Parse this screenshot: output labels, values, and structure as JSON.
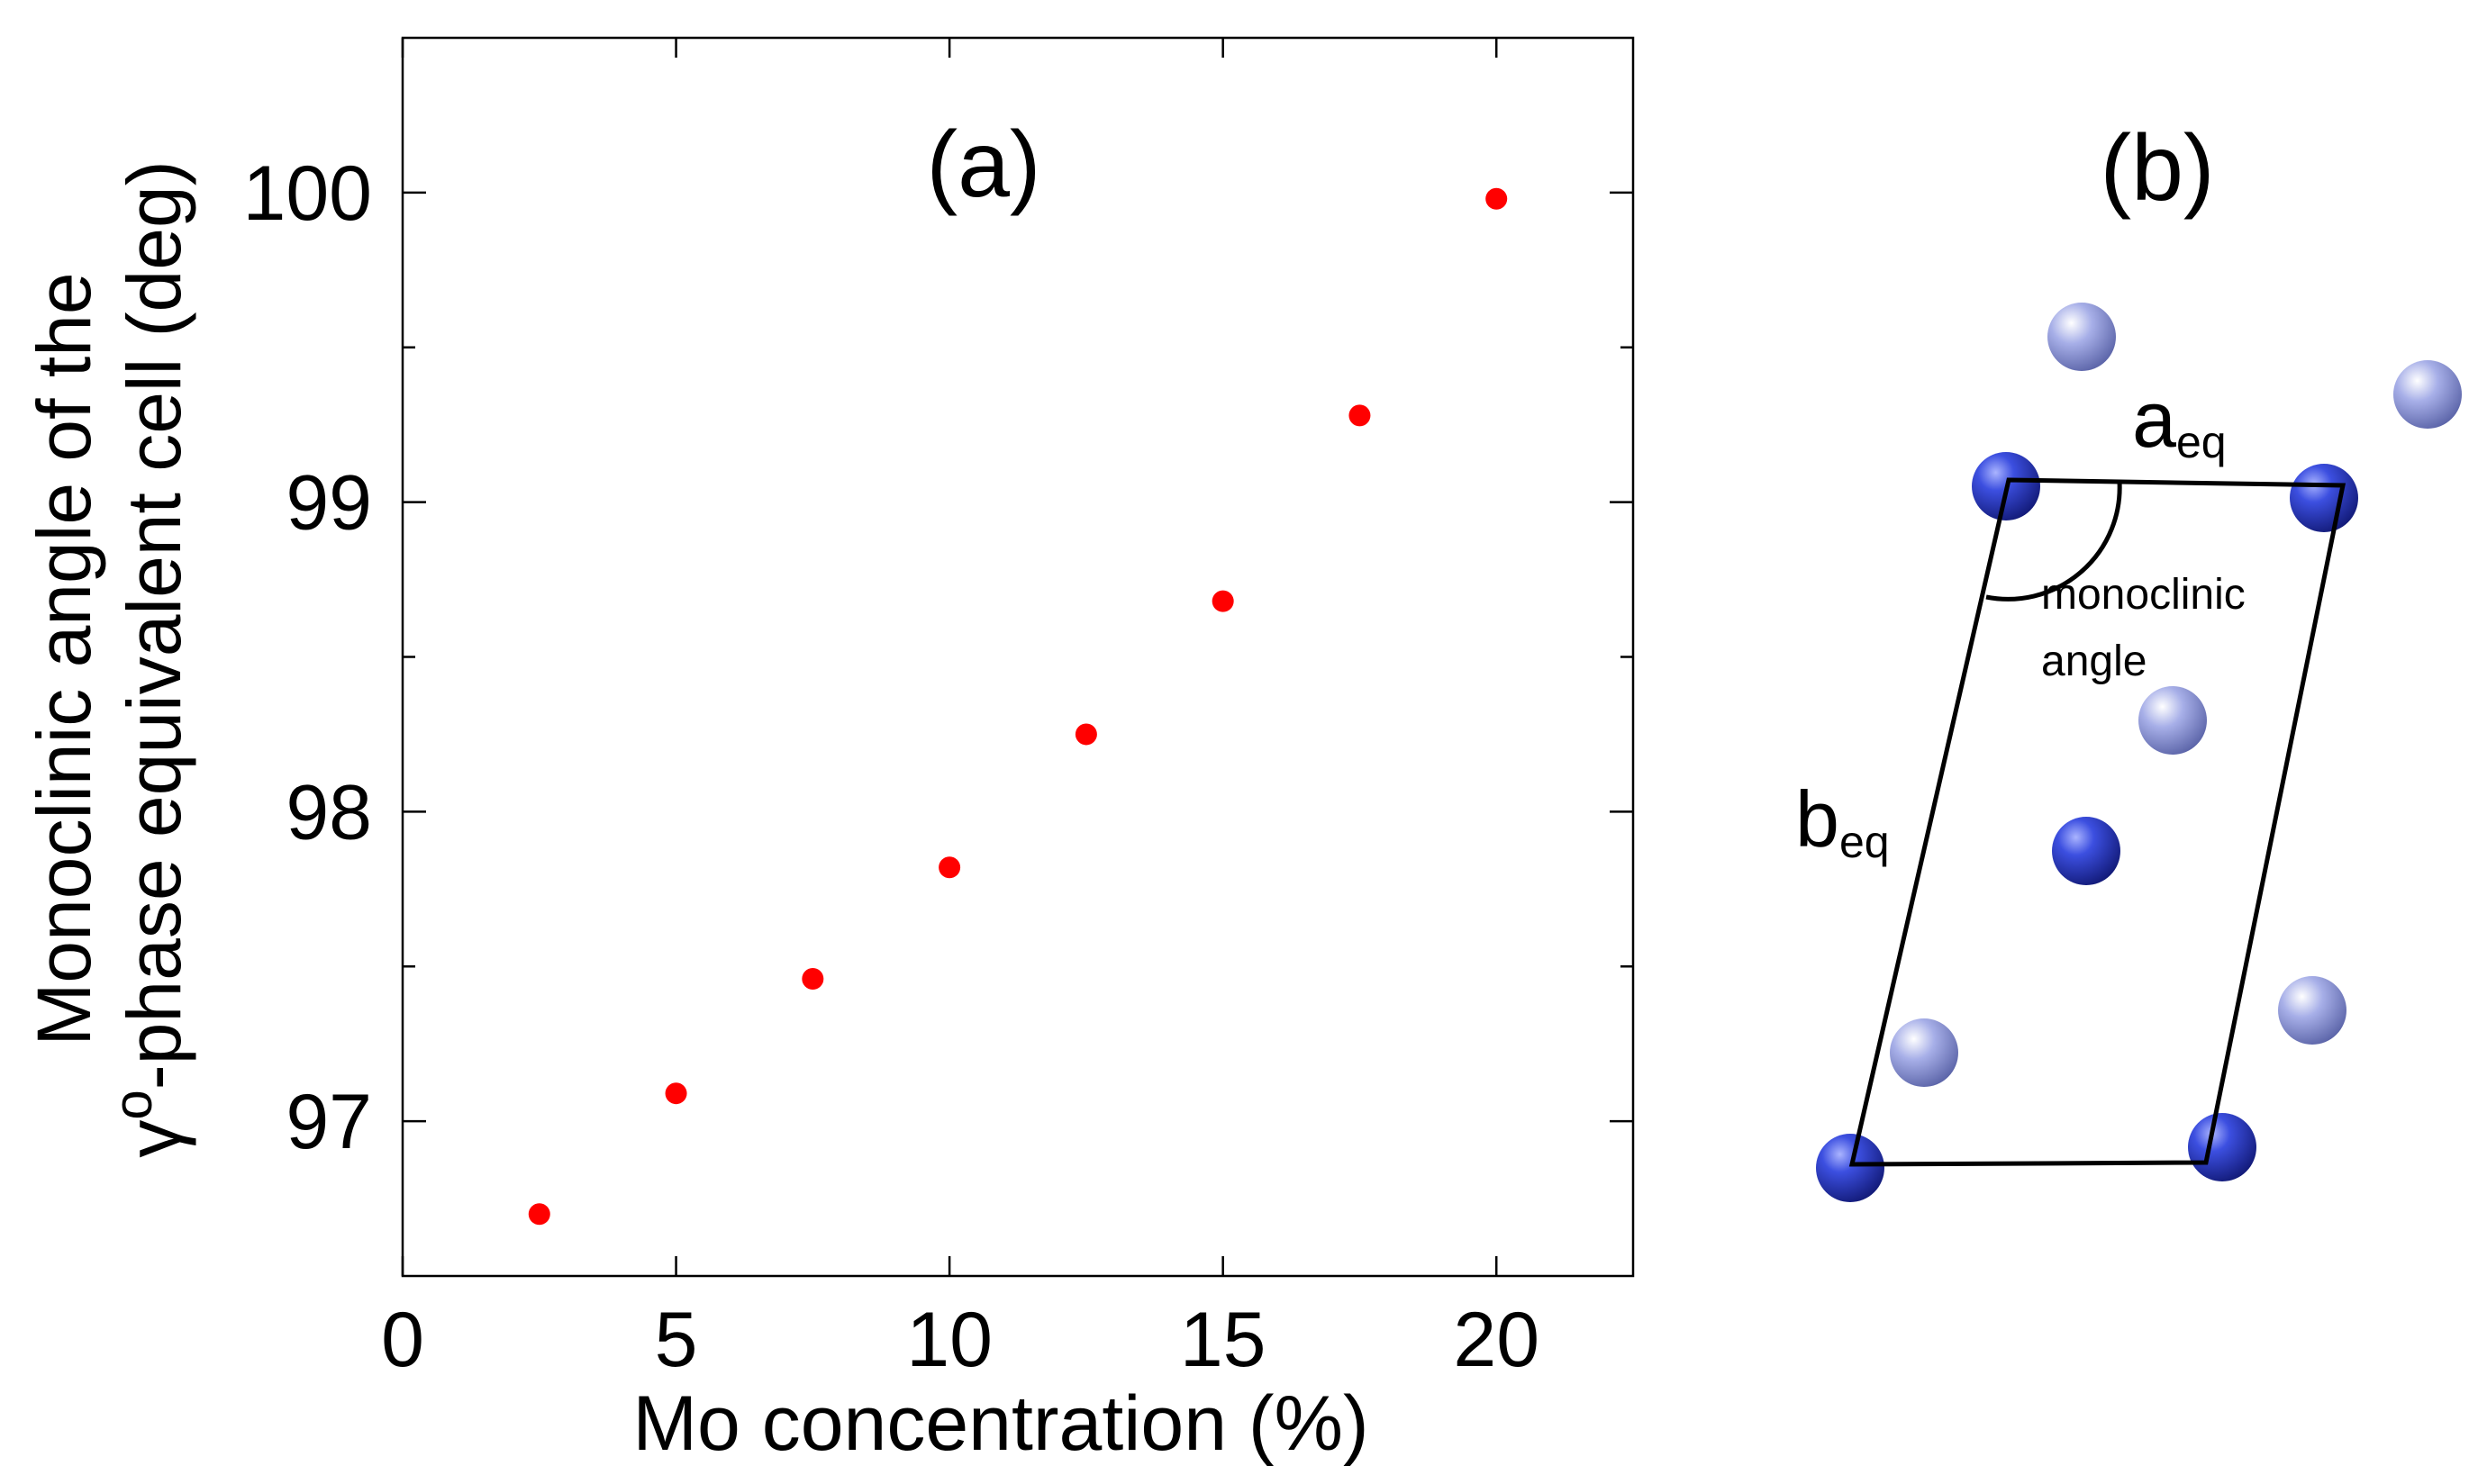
{
  "panel_b": {
    "label": "(b)",
    "a_label_main": "a",
    "a_label_sub": "eq",
    "b_label_main": "b",
    "b_label_sub": "eq",
    "angle_label_line1": "monoclinic",
    "angle_label_line2": "angle",
    "atom_dark_color": "#2e3fc9",
    "atom_light_color": "#9aa4e6"
  },
  "chart_data": {
    "type": "scatter",
    "panel_label": "(a)",
    "xlabel": "Mo concentration (%)",
    "ylabel_line1": "Monoclinic angle of the",
    "ylabel_line2_prefix": "γ",
    "ylabel_line2_sup": "o",
    "ylabel_line2_rest": "-phase equivalent cell (deg)",
    "xlim": [
      0,
      22.5
    ],
    "ylim": [
      96.5,
      100.5
    ],
    "xticks": [
      0,
      5,
      10,
      15,
      20
    ],
    "xtick_labels": [
      "0",
      "5",
      "10",
      "15",
      "20"
    ],
    "yticks": [
      97,
      98,
      99,
      100
    ],
    "ytick_labels": [
      "97",
      "98",
      "99",
      "100"
    ],
    "y_minor_ticks": [
      97.5,
      98.5,
      99.5
    ],
    "grid": false,
    "marker_color": "#ff0000",
    "series": [
      {
        "name": "Monoclinic angle",
        "x": [
          2.5,
          5,
          7.5,
          10,
          12.5,
          15,
          17.5,
          20
        ],
        "y": [
          96.7,
          97.09,
          97.46,
          97.82,
          98.25,
          98.68,
          99.28,
          99.98
        ]
      }
    ]
  }
}
